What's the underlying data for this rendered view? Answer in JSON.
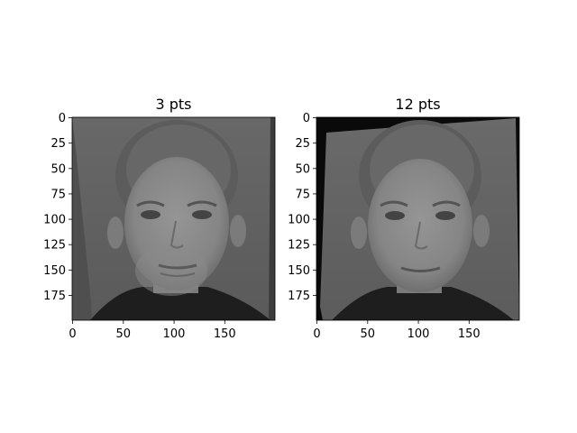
{
  "chart_data": [
    {
      "type": "image",
      "title": "3 pts",
      "image_content": "grayscale aligned face image (averaged/warped composite)",
      "xlim": [
        0,
        199
      ],
      "ylim": [
        199,
        0
      ],
      "xticks": [
        0,
        50,
        100,
        150
      ],
      "yticks": [
        0,
        25,
        50,
        75,
        100,
        125,
        150,
        175
      ],
      "grid": false,
      "colors": {
        "background": "#616161",
        "face": "#8a8a8a",
        "hair": "#5a5a5a",
        "shirt": "#1e1e1e"
      }
    },
    {
      "type": "image",
      "title": "12 pts",
      "image_content": "grayscale aligned face image (averaged/warped composite)",
      "xlim": [
        0,
        199
      ],
      "ylim": [
        199,
        0
      ],
      "xticks": [
        0,
        50,
        100,
        150
      ],
      "yticks": [
        0,
        25,
        50,
        75,
        100,
        125,
        150,
        175
      ],
      "grid": false,
      "colors": {
        "background": "#646464",
        "face": "#8c8c8c",
        "hair": "#5c5c5c",
        "shirt": "#1e1e1e",
        "border": "#0a0a0a"
      }
    }
  ]
}
